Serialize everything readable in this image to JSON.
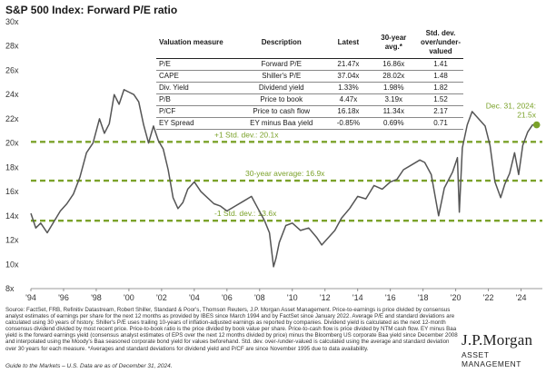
{
  "title": "S&P 500 Index: Forward P/E ratio",
  "colors": {
    "line": "#555555",
    "reference": "#7ba22a",
    "endpoint": "#7ba22a"
  },
  "chart_data": {
    "type": "line",
    "title": "S&P 500 Index: Forward P/E ratio",
    "ylim": [
      8,
      30
    ],
    "xlim": [
      1994,
      2025.3
    ],
    "yticks": [
      "8x",
      "10x",
      "12x",
      "14x",
      "16x",
      "18x",
      "20x",
      "22x",
      "24x",
      "26x",
      "28x",
      "30x"
    ],
    "xticks": [
      "'94",
      "'96",
      "'98",
      "'00",
      "'02",
      "'04",
      "'06",
      "'08",
      "'10",
      "'12",
      "'14",
      "'16",
      "'18",
      "'20",
      "'22",
      "'24"
    ],
    "series": [
      {
        "x": [
          1994.0,
          1994.3,
          1994.6,
          1995.0,
          1995.4,
          1995.8,
          1996.2,
          1996.6,
          1997.0,
          1997.4,
          1997.8,
          1998.2,
          1998.5,
          1998.8,
          1999.1,
          1999.4,
          1999.7,
          2000.0,
          2000.3,
          2000.6,
          2000.9,
          2001.2,
          2001.5,
          2001.8,
          2002.1,
          2002.4,
          2002.7,
          2003.0,
          2003.3,
          2003.6,
          2004.0,
          2004.4,
          2004.8,
          2005.2,
          2005.6,
          2006.0,
          2006.5,
          2007.0,
          2007.5,
          2007.9,
          2008.3,
          2008.6,
          2008.85,
          2009.0,
          2009.2,
          2009.6,
          2010.0,
          2010.5,
          2011.0,
          2011.5,
          2011.8,
          2012.2,
          2012.6,
          2013.0,
          2013.5,
          2014.0,
          2014.5,
          2015.0,
          2015.5,
          2016.0,
          2016.4,
          2016.8,
          2017.3,
          2017.8,
          2018.1,
          2018.5,
          2018.95,
          2019.3,
          2019.8,
          2020.1,
          2020.22,
          2020.4,
          2020.7,
          2021.0,
          2021.4,
          2021.8,
          2022.1,
          2022.4,
          2022.75,
          2023.0,
          2023.3,
          2023.6,
          2023.85,
          2024.1,
          2024.4,
          2024.7,
          2025.0
        ],
        "values": [
          14.2,
          13.0,
          13.4,
          12.6,
          13.5,
          14.4,
          15.0,
          15.8,
          17.2,
          19.2,
          20.0,
          22.0,
          20.8,
          21.6,
          24.0,
          23.2,
          24.4,
          24.2,
          24.0,
          23.4,
          21.5,
          20.0,
          21.4,
          20.2,
          19.5,
          17.8,
          15.5,
          14.6,
          15.1,
          16.2,
          16.8,
          16.0,
          15.5,
          15.0,
          14.8,
          14.4,
          14.8,
          15.2,
          15.6,
          14.6,
          13.6,
          12.6,
          9.8,
          10.5,
          11.8,
          13.2,
          13.4,
          12.8,
          13.0,
          12.2,
          11.6,
          12.2,
          12.8,
          13.8,
          14.6,
          15.6,
          15.4,
          16.5,
          16.2,
          16.8,
          17.0,
          17.8,
          18.2,
          18.6,
          18.4,
          17.4,
          14.0,
          16.3,
          17.6,
          18.8,
          14.3,
          19.6,
          21.5,
          22.6,
          22.0,
          21.4,
          19.8,
          16.8,
          15.5,
          16.6,
          17.5,
          19.2,
          17.4,
          19.8,
          20.9,
          21.5,
          21.5
        ]
      }
    ],
    "reference_lines": [
      {
        "value": 20.1,
        "label": "+1 Std. dev.: 20.1x"
      },
      {
        "value": 16.9,
        "label": "30-year average: 16.9x"
      },
      {
        "value": 13.6,
        "label": "-1 Std. dev.: 13.6x"
      }
    ],
    "endpoint": {
      "x": 2024.95,
      "value": 21.5,
      "label_line1": "Dec. 31, 2024:",
      "label_line2": "21.5x"
    }
  },
  "table": {
    "headers": [
      "Valuation measure",
      "Description",
      "Latest",
      "30-year avg.*",
      "Std. dev. over/under-valued"
    ],
    "rows": [
      [
        "P/E",
        "Forward P/E",
        "21.47x",
        "16.86x",
        "1.41"
      ],
      [
        "CAPE",
        "Shiller's P/E",
        "37.04x",
        "28.02x",
        "1.48"
      ],
      [
        "Div. Yield",
        "Dividend yield",
        "1.33%",
        "1.98%",
        "1.82"
      ],
      [
        "P/B",
        "Price to book",
        "4.47x",
        "3.19x",
        "1.52"
      ],
      [
        "P/CF",
        "Price to cash flow",
        "16.18x",
        "11.34x",
        "2.17"
      ],
      [
        "EY Spread",
        "EY minus Baa yield",
        "-0.85%",
        "0.69%",
        "0.71"
      ]
    ]
  },
  "source_text": "Source: FactSet, FRB, Refinitiv Datastream, Robert Shiller, Standard & Poor's, Thomson Reuters, J.P. Morgan Asset Management. Price-to-earnings is price divided by consensus analyst estimates of earnings per share for the next 12 months as provided by IBES since March 1994 and by FactSet since January 2022. Average P/E and standard deviations are calculated using 30 years of history. Shiller's P/E uses trailing 10-years of inflation-adjusted earnings as reported by companies. Dividend yield is calculated as the next 12-month consensus dividend divided by most recent price. Price-to-book ratio is the price divided by book value per share. Price-to-cash flow is price divided by NTM cash flow. EY minus Baa yield is the forward earnings yield (consensus analyst estimates of EPS over the next 12 months divided by price) minus the Bloomberg US corporate Baa yield since December 2008 and interpolated using the Moody's Baa seasoned corporate bond yield for values beforehand. Std. dev. over-/under-valued is calculated using the average and standard deviation over 30 years for each measure. *Averages and standard deviations for dividend yield and P/CF are since November 1995 due to data availability.",
  "guide_text": "Guide to the Markets – U.S. Data are as of December 31, 2024.",
  "logo": {
    "top": "J.P.Morgan",
    "bottom": "ASSET MANAGEMENT"
  }
}
